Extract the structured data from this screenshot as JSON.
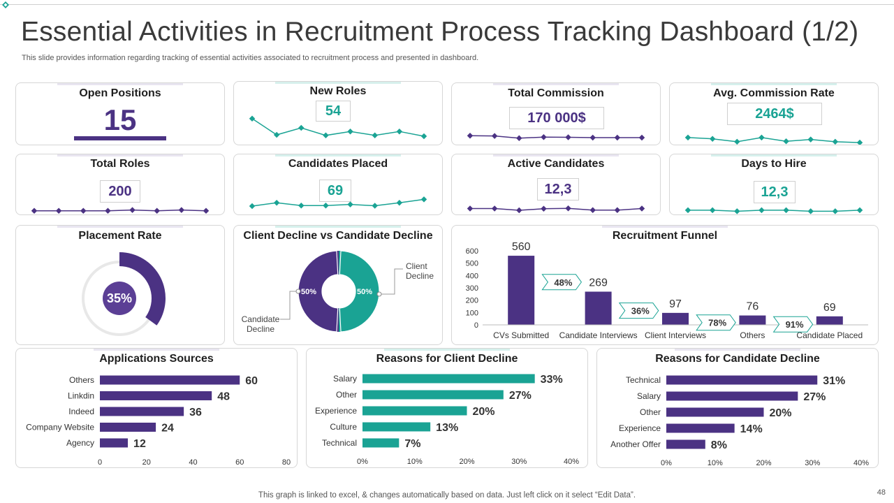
{
  "header": {
    "title": "Essential Activities in Recruitment Process Tracking Dashboard (1/2)",
    "subtitle": "This slide provides information regarding tracking of essential activities associated to recruitment process and presented in dashboard."
  },
  "footer": {
    "note": "This graph is linked to excel, & changes automatically based on data. Just left click on it select “Edit Data”.",
    "page_number": "48"
  },
  "colors": {
    "purple": "#4B3283",
    "teal": "#1AA394",
    "grey": "#E8E8E8"
  },
  "kpis": {
    "open_positions": {
      "title": "Open Positions",
      "value": "15"
    },
    "new_roles": {
      "title": "New Roles",
      "value": "54"
    },
    "total_commission": {
      "title": "Total Commission",
      "value": "170 000$"
    },
    "avg_commission_rate": {
      "title": "Avg. Commission Rate",
      "value": "2464$"
    },
    "total_roles": {
      "title": "Total Roles",
      "value": "200"
    },
    "candidates_placed": {
      "title": "Candidates Placed",
      "value": "69"
    },
    "active_candidates": {
      "title": "Active Candidates",
      "value": "12,3"
    },
    "days_to_hire": {
      "title": "Days to Hire",
      "value": "12,3"
    }
  },
  "placement_rate": {
    "title": "Placement Rate",
    "label": "35%"
  },
  "client_vs_candidate": {
    "title": "Client Decline vs Candidate Decline",
    "client_label": "Client Decline",
    "candidate_label": "Candidate Decline",
    "client_value_label": "50%",
    "candidate_value_label": "50%"
  },
  "recruitment_funnel": {
    "title": "Recruitment Funnel"
  },
  "applications_sources": {
    "title": "Applications Sources"
  },
  "reasons_client": {
    "title": "Reasons for Client Decline"
  },
  "reasons_candidate": {
    "title": "Reasons for Candidate Decline"
  },
  "chart_data": [
    {
      "id": "new_roles_spark",
      "type": "line",
      "color": "#1AA394",
      "values": [
        78,
        20,
        45,
        18,
        32,
        18,
        32,
        15
      ]
    },
    {
      "id": "total_commission_spark",
      "type": "line",
      "color": "#4B3283",
      "values": [
        42,
        40,
        20,
        30,
        28,
        25,
        25,
        25
      ]
    },
    {
      "id": "avg_commission_spark",
      "type": "line",
      "color": "#1AA394",
      "values": [
        45,
        35,
        12,
        45,
        15,
        30,
        12,
        5
      ]
    },
    {
      "id": "total_roles_spark",
      "type": "line",
      "color": "#4B3283",
      "values": [
        20,
        20,
        20,
        20,
        40,
        20,
        40,
        20
      ]
    },
    {
      "id": "candidates_placed_spark",
      "type": "line",
      "color": "#1AA394",
      "values": [
        25,
        55,
        30,
        30,
        40,
        28,
        55,
        85
      ]
    },
    {
      "id": "active_candidates_spark",
      "type": "line",
      "color": "#4B3283",
      "values": [
        45,
        45,
        20,
        42,
        48,
        22,
        22,
        45
      ]
    },
    {
      "id": "days_to_hire_spark",
      "type": "line",
      "color": "#1AA394",
      "values": [
        35,
        35,
        10,
        35,
        35,
        10,
        10,
        35
      ]
    },
    {
      "id": "placement_rate",
      "type": "pie",
      "slices": [
        {
          "label": "Placed",
          "value": 35
        },
        {
          "label": "Remaining",
          "value": 65
        }
      ]
    },
    {
      "id": "client_vs_candidate",
      "type": "pie",
      "slices": [
        {
          "label": "Client Decline",
          "value": 50
        },
        {
          "label": "Candidate Decline",
          "value": 50
        }
      ]
    },
    {
      "id": "recruitment_funnel",
      "type": "bar",
      "categories": [
        "CVs Submitted",
        "Candidate Interviews",
        "Client Interviews",
        "Others",
        "Candidate Placed"
      ],
      "values": [
        560,
        269,
        97,
        76,
        69
      ],
      "conversion_labels": [
        "48%",
        "36%",
        "78%",
        "91%"
      ],
      "ylim": [
        0,
        600
      ],
      "yticks": [
        0,
        100,
        200,
        300,
        400,
        500,
        600
      ]
    },
    {
      "id": "applications_sources",
      "type": "bar",
      "orientation": "horizontal",
      "categories": [
        "Others",
        "Linkdin",
        "Indeed",
        "Company Website",
        "Agency"
      ],
      "values": [
        60,
        48,
        36,
        24,
        12
      ],
      "value_labels": [
        "60",
        "48",
        "36",
        "24",
        "12"
      ],
      "xlim": [
        0,
        80
      ],
      "xticks": [
        "0",
        "20",
        "40",
        "60",
        "80"
      ]
    },
    {
      "id": "reasons_client",
      "type": "bar",
      "orientation": "horizontal",
      "categories": [
        "Salary",
        "Other",
        "Experience",
        "Culture",
        "Technical"
      ],
      "values": [
        33,
        27,
        20,
        13,
        7
      ],
      "value_labels": [
        "33%",
        "27%",
        "20%",
        "13%",
        "7%"
      ],
      "xlim": [
        0,
        40
      ],
      "xticks": [
        "0%",
        "10%",
        "20%",
        "30%",
        "40%"
      ]
    },
    {
      "id": "reasons_candidate",
      "type": "bar",
      "orientation": "horizontal",
      "categories": [
        "Technical",
        "Salary",
        "Other",
        "Experience",
        "Another Offer"
      ],
      "values": [
        31,
        27,
        20,
        14,
        8
      ],
      "value_labels": [
        "31%",
        "27%",
        "20%",
        "14%",
        "8%"
      ],
      "xlim": [
        0,
        40
      ],
      "xticks": [
        "0%",
        "10%",
        "20%",
        "30%",
        "40%"
      ]
    }
  ]
}
